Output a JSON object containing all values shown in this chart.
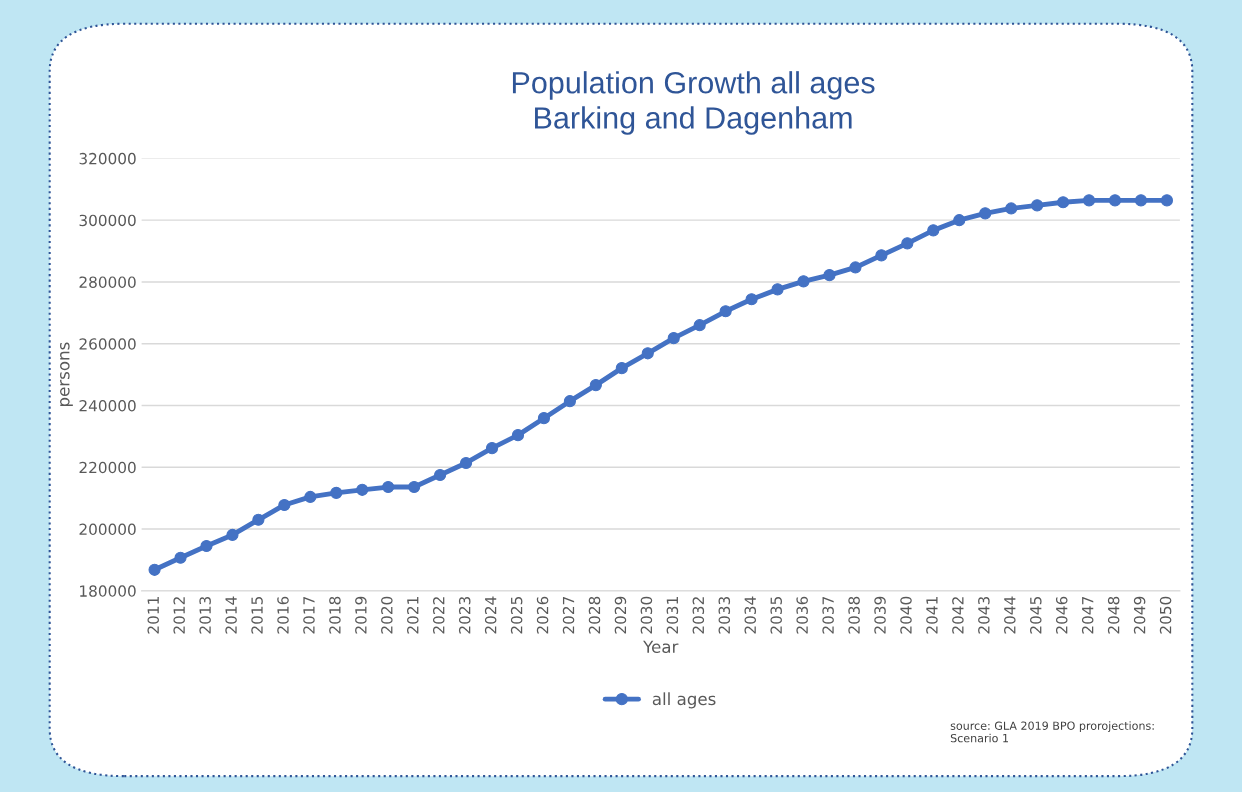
{
  "chart_data": {
    "type": "line",
    "title": "Population Growth all ages\nBarking and Dagenham",
    "xlabel": "Year",
    "ylabel": "persons",
    "categories": [
      "2011",
      "2012",
      "2013",
      "2014",
      "2015",
      "2016",
      "2017",
      "2018",
      "2019",
      "2020",
      "2021",
      "2022",
      "2023",
      "2024",
      "2025",
      "2026",
      "2027",
      "2028",
      "2029",
      "2030",
      "2031",
      "2032",
      "2033",
      "2034",
      "2035",
      "2036",
      "2037",
      "2038",
      "2039",
      "2040",
      "2041",
      "2042",
      "2043",
      "2044",
      "2045",
      "2046",
      "2047",
      "2048",
      "2049",
      "2050"
    ],
    "series": [
      {
        "name": "all ages",
        "color": "#4472c4",
        "values": [
          186800,
          190700,
          194500,
          198100,
          203000,
          207800,
          210400,
          211700,
          212700,
          213600,
          213600,
          217500,
          221400,
          226200,
          230400,
          235900,
          241400,
          246600,
          252100,
          256900,
          261800,
          266000,
          270500,
          274400,
          277600,
          280200,
          282200,
          284700,
          288600,
          292500,
          296700,
          300000,
          302200,
          303800,
          304800,
          305800,
          306400,
          306400,
          306400,
          306400
        ]
      }
    ],
    "ylim": [
      180000,
      320000
    ],
    "yticks": [
      180000,
      200000,
      220000,
      240000,
      260000,
      280000,
      300000,
      320000
    ],
    "grid": "y",
    "legend": "bottom",
    "marker": "circle",
    "line_style": "solid",
    "annotations": [
      "source: GLA 2019 BPO prorojections:\nScenario 1"
    ]
  }
}
